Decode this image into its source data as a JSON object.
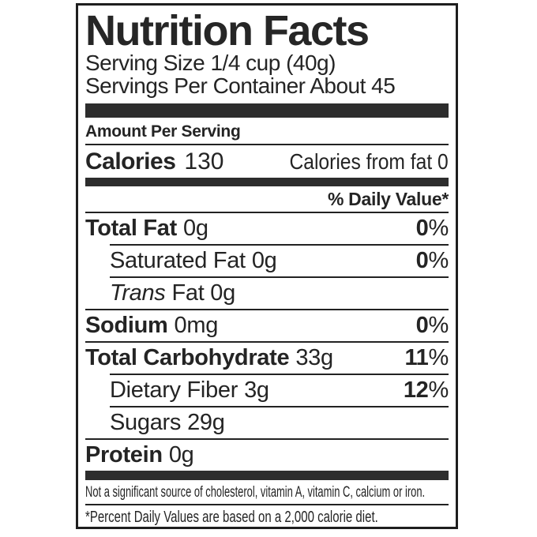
{
  "label": {
    "title": "Nutrition Facts",
    "serving_size": "Serving Size 1/4 cup (40g)",
    "servings_per_container": "Servings Per Container About 45",
    "amount_per_serving": "Amount Per Serving",
    "calories": {
      "label": "Calories",
      "value": "130",
      "from_fat": "Calories from fat 0"
    },
    "daily_value_header": "% Daily Value*",
    "rows": [
      {
        "name": "Total Fat",
        "amount": "0g",
        "dv_num": "0",
        "dv_unit": "%"
      },
      {
        "name": "Saturated Fat",
        "amount": "0g",
        "dv_num": "0",
        "dv_unit": "%"
      },
      {
        "name": "Trans",
        "rest": "Fat 0g"
      },
      {
        "name": "Sodium",
        "amount": "0mg",
        "dv_num": "0",
        "dv_unit": "%"
      },
      {
        "name": "Total Carbohydrate",
        "amount": "33g",
        "dv_num": "11",
        "dv_unit": "%"
      },
      {
        "name": "Dietary Fiber",
        "amount": "3g",
        "dv_num": "12",
        "dv_unit": "%"
      },
      {
        "name": "Sugars",
        "amount": "29g"
      },
      {
        "name": "Protein",
        "amount": "0g"
      }
    ],
    "not_significant_note": "Not a significant source of cholesterol, vitamin A, vitamin C, calcium or iron.",
    "footnote": "*Percent Daily Values are based on a 2,000 calorie diet.",
    "colors": {
      "ink": "#242424",
      "bar": "#2d2d2d",
      "background": "#ffffff"
    }
  }
}
